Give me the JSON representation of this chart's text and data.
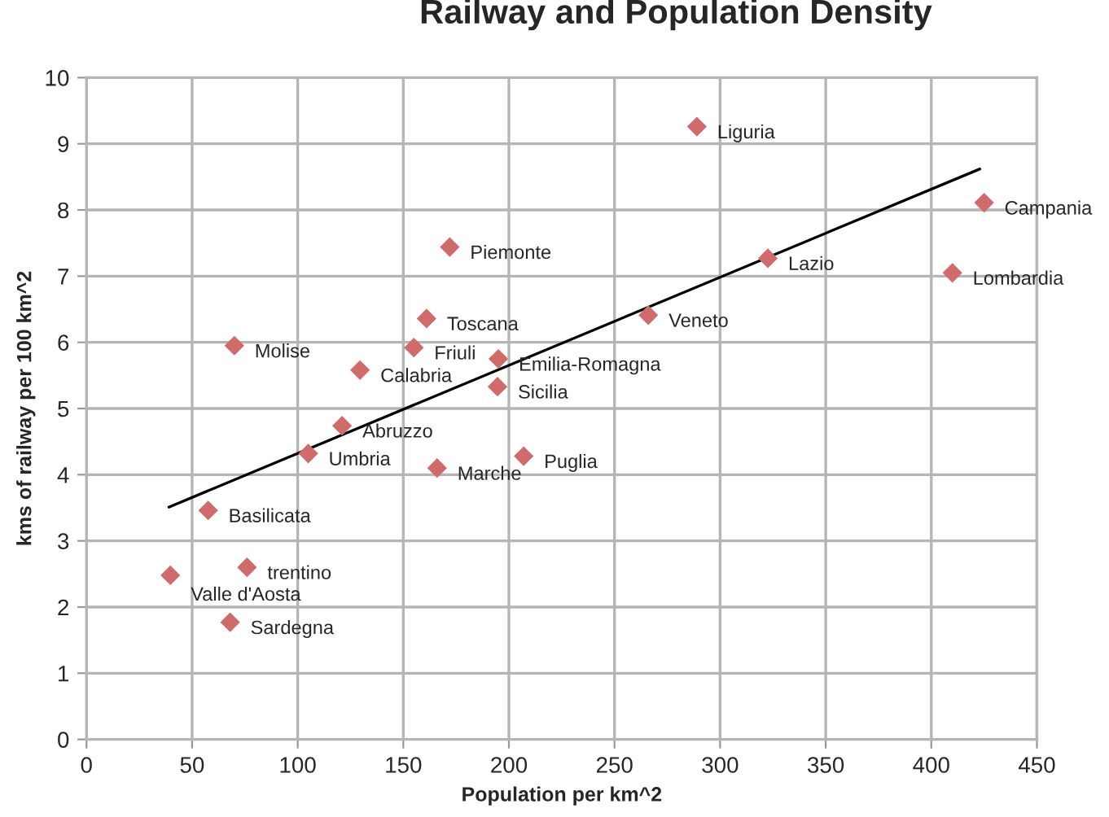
{
  "chart_data": {
    "type": "scatter",
    "title": "Railway and Population Density",
    "xlabel": "Population per km^2",
    "ylabel": "kms of railway per 100 km^2",
    "xlim": [
      0,
      450
    ],
    "xticks": [
      0,
      50,
      100,
      150,
      200,
      250,
      300,
      350,
      400,
      450
    ],
    "ylim": [
      0,
      10
    ],
    "yticks": [
      0,
      1,
      2,
      3,
      4,
      5,
      6,
      7,
      8,
      9,
      10
    ],
    "grid": true,
    "series": [
      {
        "marker": "diamond",
        "color": "#d06b6b",
        "x": [
          289,
          425,
          322.6,
          410,
          266,
          172,
          161,
          155,
          70,
          129.5,
          195,
          194.6,
          121,
          105,
          166,
          207,
          57.6,
          76,
          39.7,
          68
        ],
        "values": [
          9.26,
          8.11,
          7.27,
          7.05,
          6.41,
          7.44,
          6.36,
          5.92,
          5.95,
          5.58,
          5.75,
          5.33,
          4.74,
          4.32,
          4.1,
          4.28,
          3.46,
          2.6,
          2.48,
          1.77
        ]
      },
      {
        "type": "line",
        "color": "#000000",
        "x": [
          39,
          423
        ],
        "values": [
          3.51,
          8.62
        ]
      }
    ],
    "annotations": [
      {
        "text": "Liguria",
        "x": 289,
        "y": 9.26
      },
      {
        "text": "Campania",
        "x": 425,
        "y": 8.11
      },
      {
        "text": "Lazio",
        "x": 322.6,
        "y": 7.27
      },
      {
        "text": "Lombardia",
        "x": 410,
        "y": 7.05
      },
      {
        "text": "Veneto",
        "x": 266,
        "y": 6.41
      },
      {
        "text": "Piemonte",
        "x": 172,
        "y": 7.44
      },
      {
        "text": "Toscana",
        "x": 161,
        "y": 6.36
      },
      {
        "text": "Friuli",
        "x": 155,
        "y": 5.92
      },
      {
        "text": "Molise",
        "x": 70,
        "y": 5.95
      },
      {
        "text": "Calabria",
        "x": 129.5,
        "y": 5.58
      },
      {
        "text": "Emilia-Romagna",
        "x": 195,
        "y": 5.75
      },
      {
        "text": "Sicilia",
        "x": 194.6,
        "y": 5.33
      },
      {
        "text": "Abruzzo",
        "x": 121,
        "y": 4.74
      },
      {
        "text": "Umbria",
        "x": 105,
        "y": 4.32
      },
      {
        "text": "Marche",
        "x": 166,
        "y": 4.1
      },
      {
        "text": "Puglia",
        "x": 207,
        "y": 4.28
      },
      {
        "text": "Basilicata",
        "x": 57.6,
        "y": 3.46
      },
      {
        "text": "trentino",
        "x": 76,
        "y": 2.6
      },
      {
        "text": "Valle d'Aosta",
        "x": 39.7,
        "y": 2.48
      },
      {
        "text": "Sardegna",
        "x": 68,
        "y": 1.77
      }
    ]
  }
}
